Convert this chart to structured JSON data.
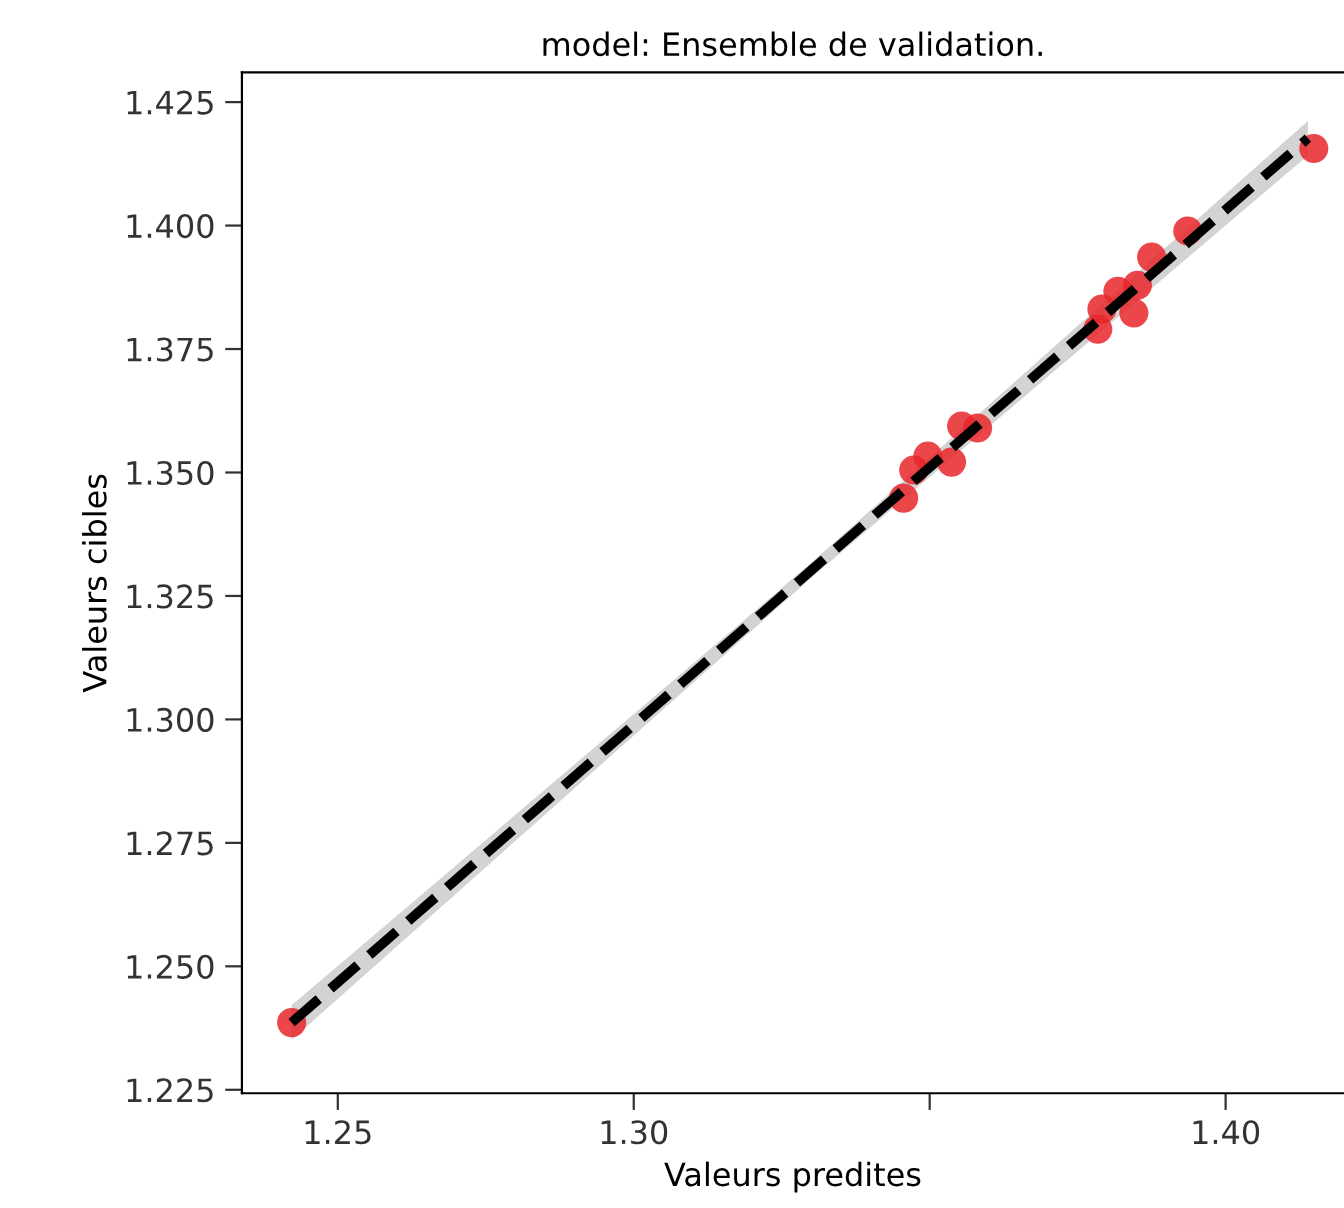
{
  "chart_data": {
    "type": "scatter",
    "title": "model: Ensemble de validation.",
    "xlabel": "Valeurs predites",
    "ylabel": "Valeurs cibles",
    "xlim": [
      1.2338,
      1.42
    ],
    "xticks": [
      {
        "value": 1.25,
        "label": "1.25"
      },
      {
        "value": 1.3,
        "label": "1.30"
      },
      {
        "value": 1.35,
        "label": null
      },
      {
        "value": 1.4,
        "label": "1.40"
      }
    ],
    "ylim": [
      1.2243,
      1.431
    ],
    "yticks": [
      {
        "value": 1.225,
        "label": "1.225"
      },
      {
        "value": 1.25,
        "label": "1.250"
      },
      {
        "value": 1.275,
        "label": "1.275"
      },
      {
        "value": 1.3,
        "label": "1.300"
      },
      {
        "value": 1.325,
        "label": "1.325"
      },
      {
        "value": 1.35,
        "label": "1.350"
      },
      {
        "value": 1.375,
        "label": "1.375"
      },
      {
        "value": 1.4,
        "label": "1.400"
      },
      {
        "value": 1.425,
        "label": "1.425"
      }
    ],
    "grid": false,
    "series": [
      {
        "type": "line",
        "color": "#000000",
        "line_style": "dashed",
        "marker": "none",
        "x": [
          1.2422,
          1.33,
          1.4139
        ],
        "values": [
          1.2386,
          1.3302,
          1.4177
        ],
        "lower": [
          1.2351,
          1.3287,
          1.4142
        ],
        "upper": [
          1.2421,
          1.3317,
          1.4212
        ]
      },
      {
        "color": "#e8262a",
        "marker": "circle",
        "x": [
          1.2422,
          1.3456,
          1.3473,
          1.3497,
          1.3537,
          1.3554,
          1.3581,
          1.3784,
          1.3791,
          1.3845,
          1.3818,
          1.3851,
          1.3875,
          1.3936,
          1.4149
        ],
        "values": [
          1.2386,
          1.3448,
          1.3505,
          1.3533,
          1.3521,
          1.3594,
          1.359,
          1.379,
          1.3831,
          1.3823,
          1.3867,
          1.3879,
          1.3936,
          1.3989,
          1.4156
        ]
      }
    ]
  }
}
